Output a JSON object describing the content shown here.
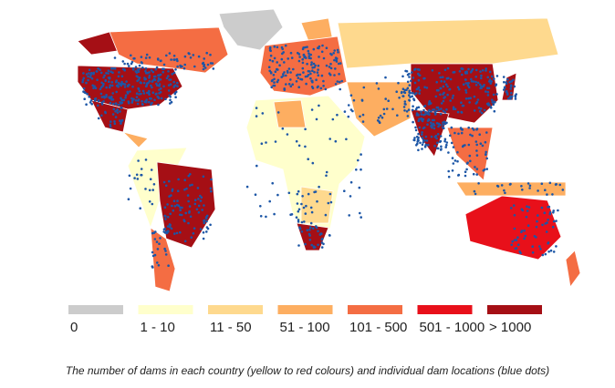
{
  "legend": {
    "items": [
      {
        "label": "0",
        "color": "#cccccc"
      },
      {
        "label": "1 - 10",
        "color": "#ffffcc"
      },
      {
        "label": "11 - 50",
        "color": "#fed98e"
      },
      {
        "label": "51 - 100",
        "color": "#fdae61"
      },
      {
        "label": "101 - 500",
        "color": "#f46d43"
      },
      {
        "label": "501 - 1000",
        "color": "#e8101a"
      },
      {
        "label": "> 1000",
        "color": "#a50f15"
      }
    ]
  },
  "caption": "The number of dams in each country (yellow to red colours) and individual dam locations (blue dots)"
}
